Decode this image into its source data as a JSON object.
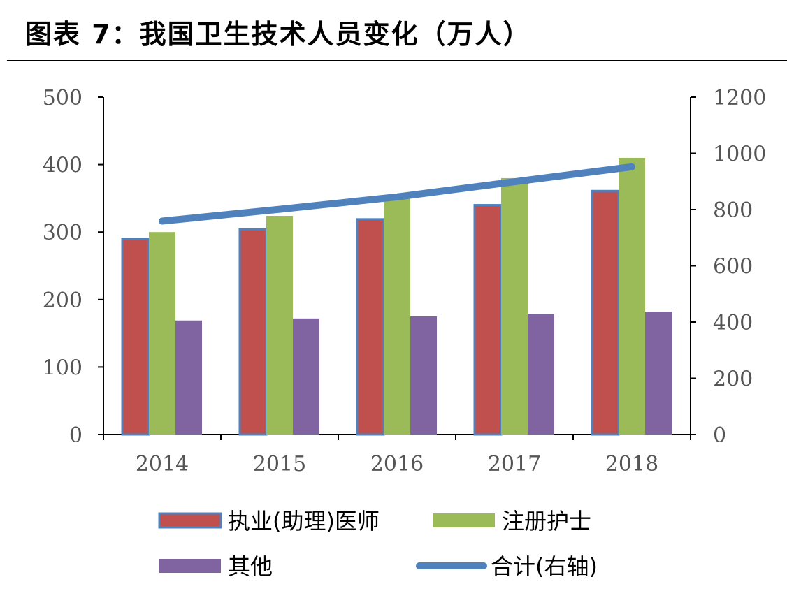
{
  "title": "图表 7：我国卫生技术人员变化（万人）",
  "chart_data": {
    "type": "bar",
    "categories": [
      "2014",
      "2015",
      "2016",
      "2017",
      "2018"
    ],
    "series": [
      {
        "name": "执业(助理)医师",
        "type": "bar",
        "axis": "left",
        "color": "#C0504D",
        "values": [
          290,
          304,
          319,
          340,
          361
        ]
      },
      {
        "name": "注册护士",
        "type": "bar",
        "axis": "left",
        "color": "#9BBB59",
        "values": [
          300,
          324,
          351,
          380,
          410
        ]
      },
      {
        "name": "其他",
        "type": "bar",
        "axis": "left",
        "color": "#8064A2",
        "values": [
          169,
          172,
          175,
          179,
          182
        ]
      },
      {
        "name": "合计(右轴)",
        "type": "line",
        "axis": "right",
        "color": "#4F81BD",
        "values": [
          759,
          801,
          845,
          899,
          952
        ]
      }
    ],
    "ylim": [
      0,
      500
    ],
    "yticks": [
      "0",
      "100",
      "200",
      "300",
      "400",
      "500"
    ],
    "y2lim": [
      0,
      1200
    ],
    "y2ticks": [
      "0",
      "200",
      "400",
      "600",
      "800",
      "1000",
      "1200"
    ],
    "grid": false,
    "legend": "bottom"
  }
}
